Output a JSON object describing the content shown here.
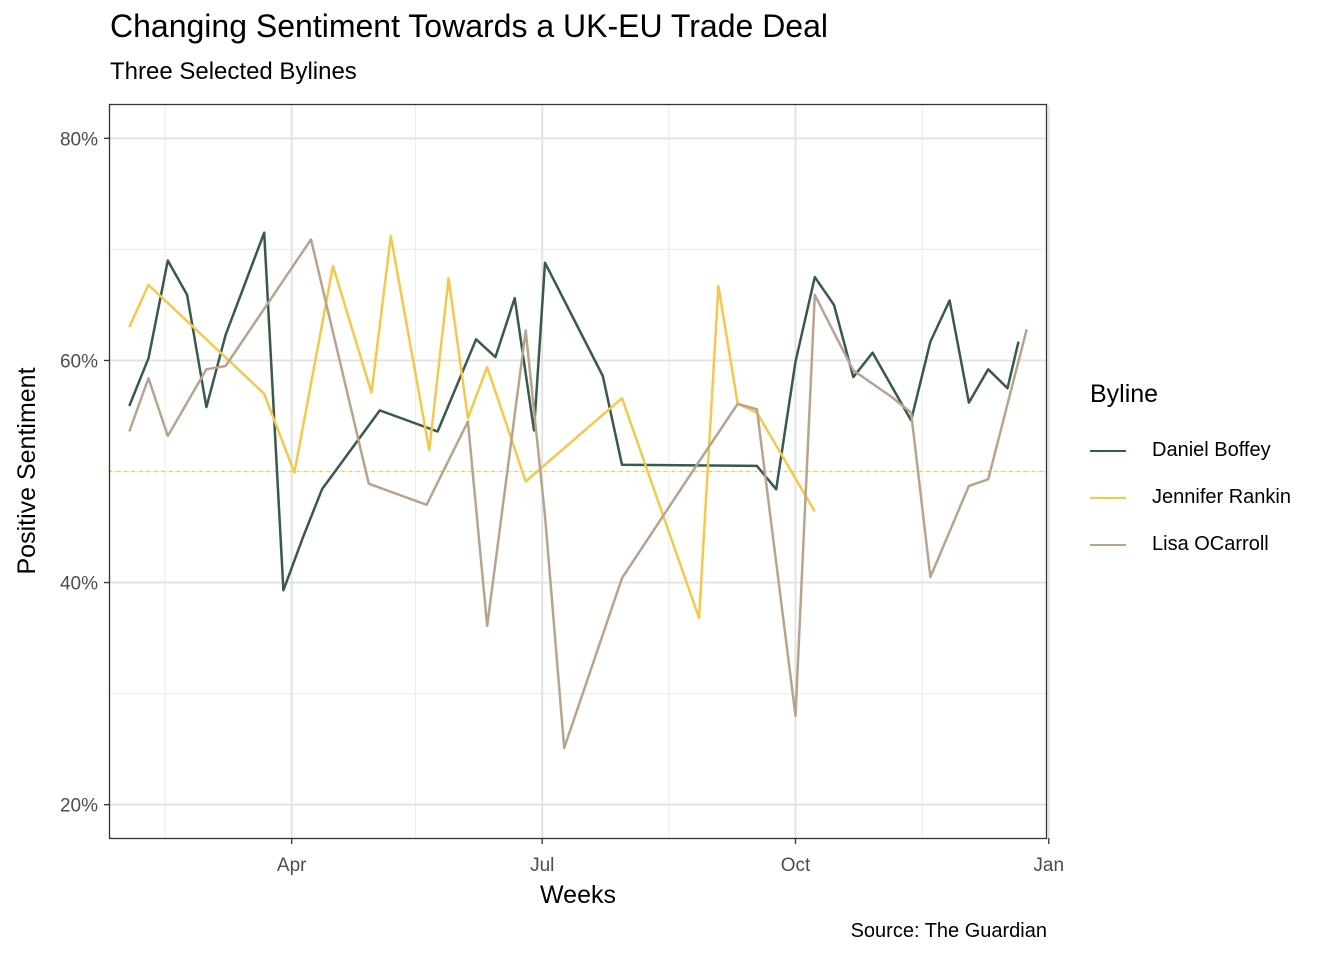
{
  "chart_data": {
    "type": "line",
    "title": "Changing Sentiment Towards a UK-EU Trade Deal",
    "subtitle": "Three Selected Bylines",
    "xlabel": "Weeks",
    "ylabel": "Positive Sentiment",
    "caption": "Source: The Guardian",
    "legend_title": "Byline",
    "legend_position": "right",
    "grid": true,
    "reference_line": {
      "y": 0.5,
      "style": "dotted",
      "color": "#F5C84C"
    },
    "xlim": [
      "2020-01-26",
      "2020-12-31"
    ],
    "ylim": [
      0.17,
      0.83
    ],
    "x_ticks": [
      {
        "date": "2020-04-01",
        "label": "Apr"
      },
      {
        "date": "2020-07-01",
        "label": "Jul"
      },
      {
        "date": "2020-10-01",
        "label": "Oct"
      },
      {
        "date": "2021-01-01",
        "label": "Jan"
      }
    ],
    "x_minor_ticks": [
      "2020-02-15",
      "2020-05-16",
      "2020-08-16",
      "2020-11-16"
    ],
    "y_ticks": [
      {
        "value": 0.2,
        "label": "20%"
      },
      {
        "value": 0.4,
        "label": "40%"
      },
      {
        "value": 0.6,
        "label": "60%"
      },
      {
        "value": 0.8,
        "label": "80%"
      }
    ],
    "y_minor_ticks": [
      0.3,
      0.5,
      0.7
    ],
    "series": [
      {
        "name": "Daniel Boffey",
        "color": "#385A4A",
        "points": [
          [
            "2020-02-02",
            0.559
          ],
          [
            "2020-02-09",
            0.602
          ],
          [
            "2020-02-16",
            0.69
          ],
          [
            "2020-02-23",
            0.659
          ],
          [
            "2020-03-01",
            0.558
          ],
          [
            "2020-03-08",
            0.623
          ],
          [
            "2020-03-22",
            0.715
          ],
          [
            "2020-03-29",
            0.393
          ],
          [
            "2020-04-05",
            0.44
          ],
          [
            "2020-04-12",
            0.484
          ],
          [
            "2020-05-03",
            0.555
          ],
          [
            "2020-05-24",
            0.536
          ],
          [
            "2020-06-07",
            0.619
          ],
          [
            "2020-06-14",
            0.603
          ],
          [
            "2020-06-21",
            0.656
          ],
          [
            "2020-06-28",
            0.537
          ],
          [
            "2020-07-02",
            0.688
          ],
          [
            "2020-07-23",
            0.586
          ],
          [
            "2020-07-30",
            0.506
          ],
          [
            "2020-09-17",
            0.505
          ],
          [
            "2020-09-24",
            0.484
          ],
          [
            "2020-10-01",
            0.599
          ],
          [
            "2020-10-08",
            0.675
          ],
          [
            "2020-10-15",
            0.65
          ],
          [
            "2020-10-22",
            0.585
          ],
          [
            "2020-10-29",
            0.607
          ],
          [
            "2020-11-12",
            0.546
          ],
          [
            "2020-11-19",
            0.617
          ],
          [
            "2020-11-26",
            0.654
          ],
          [
            "2020-12-03",
            0.562
          ],
          [
            "2020-12-10",
            0.592
          ],
          [
            "2020-12-17",
            0.575
          ],
          [
            "2020-12-21",
            0.617
          ]
        ]
      },
      {
        "name": "Jennifer Rankin",
        "color": "#F5C84C",
        "points": [
          [
            "2020-02-02",
            0.63
          ],
          [
            "2020-02-09",
            0.668
          ],
          [
            "2020-03-22",
            0.57
          ],
          [
            "2020-04-02",
            0.499
          ],
          [
            "2020-04-16",
            0.685
          ],
          [
            "2020-04-30",
            0.571
          ],
          [
            "2020-05-07",
            0.712
          ],
          [
            "2020-05-21",
            0.519
          ],
          [
            "2020-05-28",
            0.674
          ],
          [
            "2020-06-04",
            0.548
          ],
          [
            "2020-06-11",
            0.594
          ],
          [
            "2020-06-25",
            0.491
          ],
          [
            "2020-07-30",
            0.566
          ],
          [
            "2020-08-27",
            0.368
          ],
          [
            "2020-09-03",
            0.667
          ],
          [
            "2020-09-10",
            0.561
          ],
          [
            "2020-09-17",
            0.553
          ],
          [
            "2020-10-08",
            0.464
          ]
        ]
      },
      {
        "name": "Lisa OCarroll",
        "color": "#B8A48C",
        "points": [
          [
            "2020-02-02",
            0.536
          ],
          [
            "2020-02-09",
            0.584
          ],
          [
            "2020-02-16",
            0.532
          ],
          [
            "2020-03-01",
            0.592
          ],
          [
            "2020-03-08",
            0.595
          ],
          [
            "2020-04-08",
            0.709
          ],
          [
            "2020-04-29",
            0.489
          ],
          [
            "2020-05-20",
            0.47
          ],
          [
            "2020-06-04",
            0.545
          ],
          [
            "2020-06-11",
            0.361
          ],
          [
            "2020-06-25",
            0.627
          ],
          [
            "2020-07-02",
            0.46
          ],
          [
            "2020-07-09",
            0.251
          ],
          [
            "2020-07-30",
            0.404
          ],
          [
            "2020-08-27",
            0.509
          ],
          [
            "2020-09-10",
            0.561
          ],
          [
            "2020-09-17",
            0.556
          ],
          [
            "2020-10-01",
            0.28
          ],
          [
            "2020-10-08",
            0.659
          ],
          [
            "2020-10-22",
            0.591
          ],
          [
            "2020-11-05",
            0.567
          ],
          [
            "2020-11-12",
            0.553
          ],
          [
            "2020-11-19",
            0.405
          ],
          [
            "2020-12-03",
            0.487
          ],
          [
            "2020-12-10",
            0.493
          ],
          [
            "2020-12-24",
            0.628
          ]
        ]
      }
    ]
  }
}
